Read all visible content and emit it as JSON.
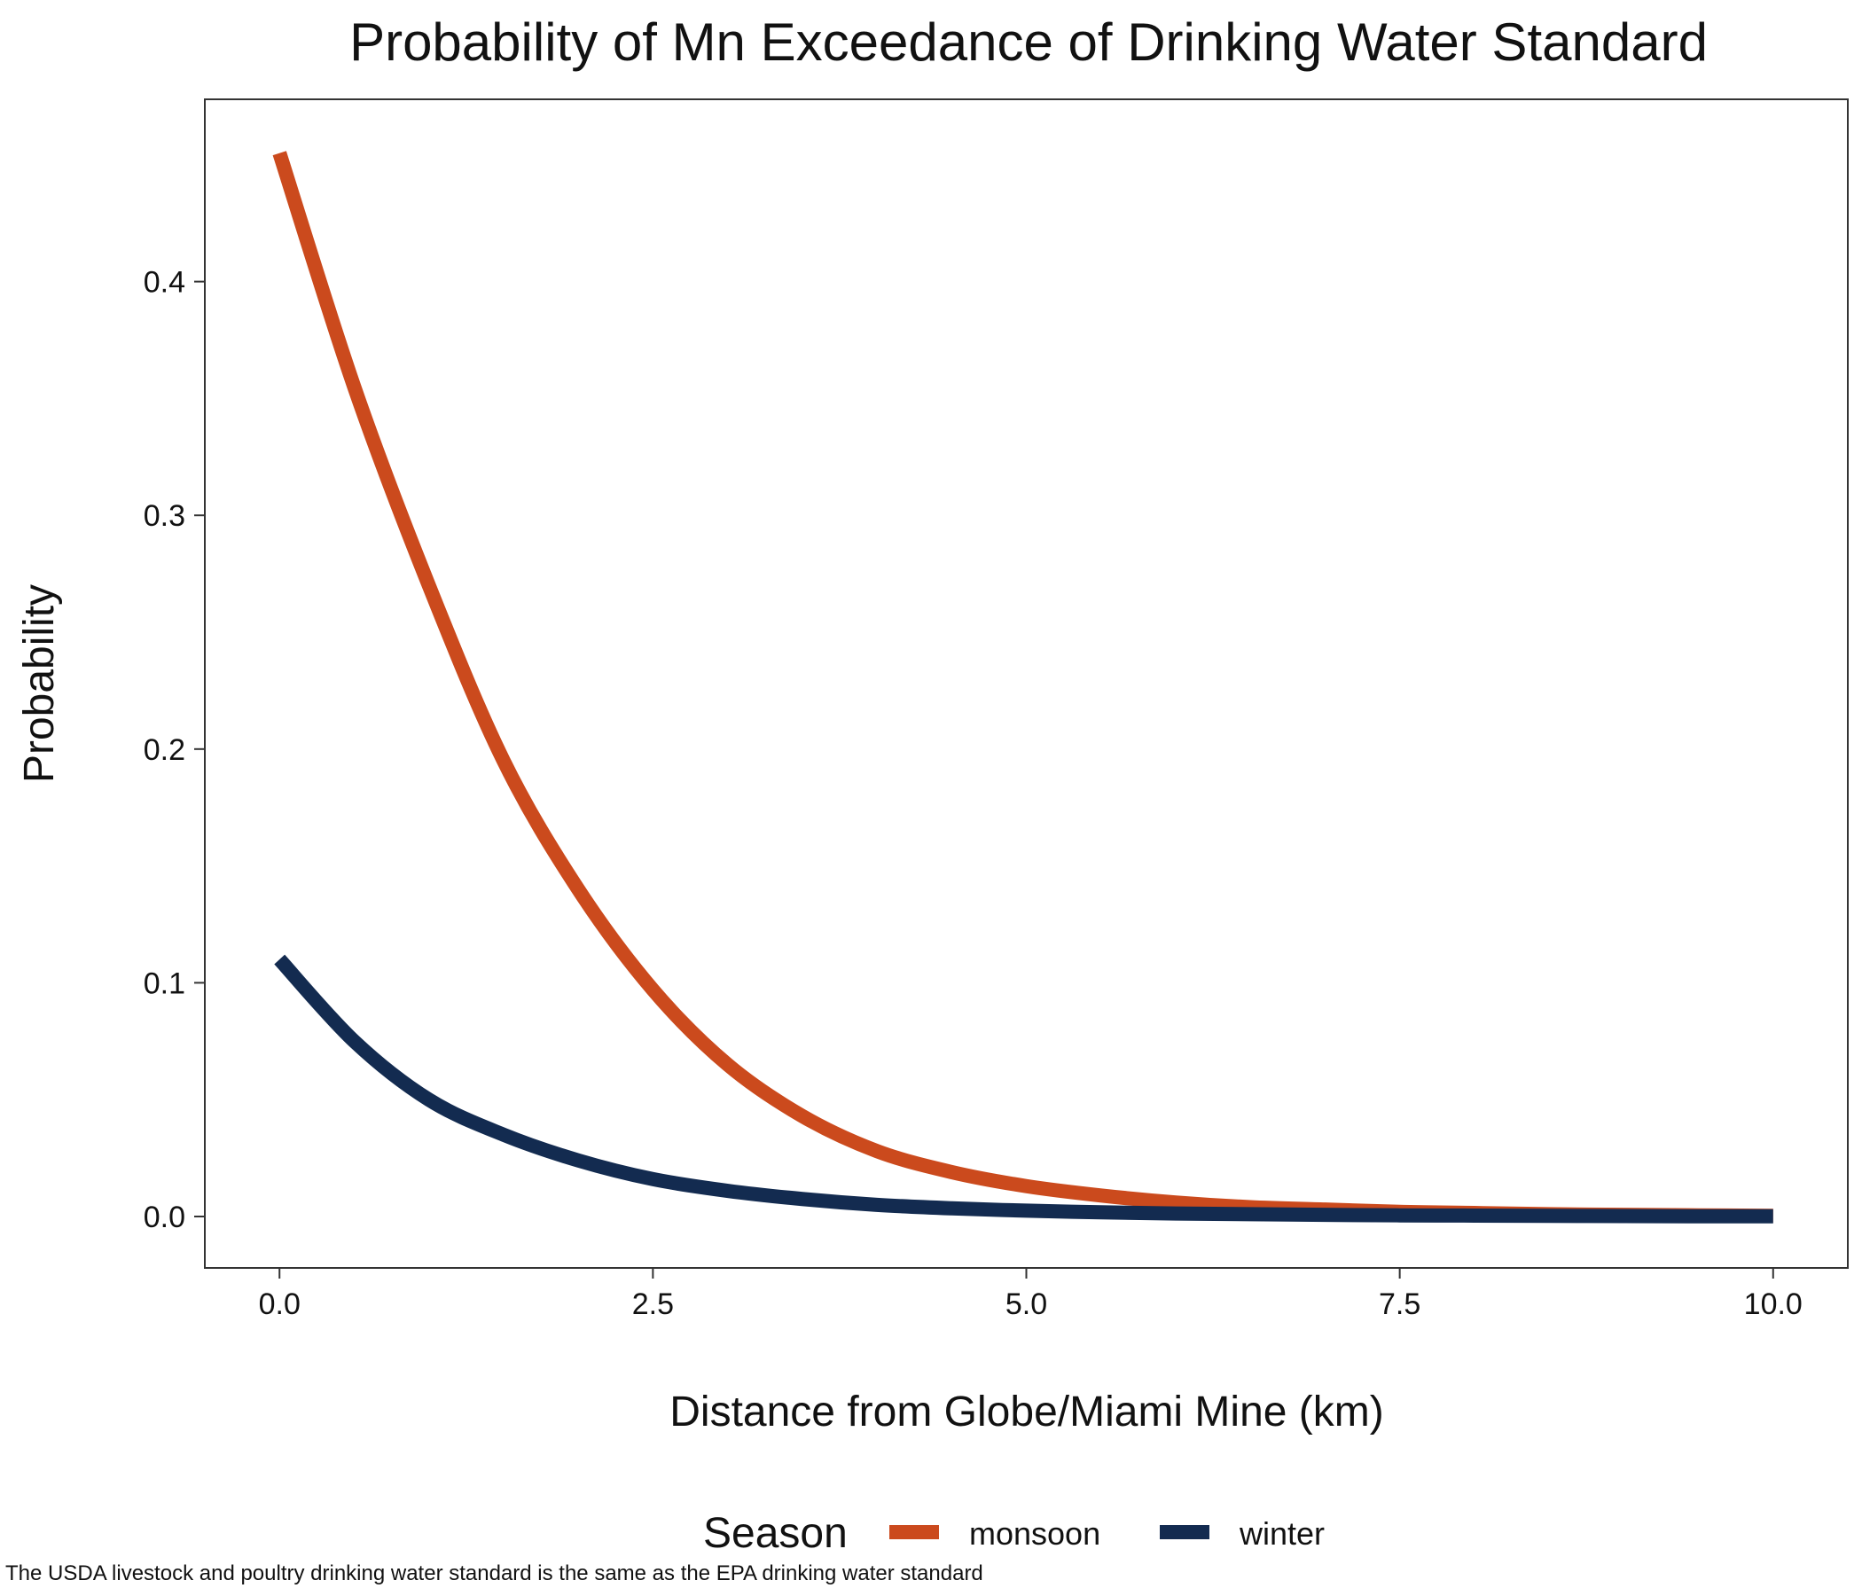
{
  "chart_data": {
    "type": "line",
    "title": "Probability of Mn Exceedance of Drinking Water Standard",
    "xlabel": "Distance from Globe/Miami Mine (km)",
    "ylabel": "Probability",
    "caption": "The USDA livestock and poultry drinking water standard is the same as the EPA drinking water standard",
    "xlim": [
      -0.5,
      10.5
    ],
    "ylim": [
      -0.022,
      0.478
    ],
    "x_ticks": [
      0.0,
      2.5,
      5.0,
      7.5,
      10.0
    ],
    "x_tick_labels": [
      "0.0",
      "2.5",
      "5.0",
      "7.5",
      "10.0"
    ],
    "y_ticks": [
      0.0,
      0.1,
      0.2,
      0.3,
      0.4
    ],
    "y_tick_labels": [
      "0.0",
      "0.1",
      "0.2",
      "0.3",
      "0.4"
    ],
    "grid": false,
    "legend": {
      "title": "Season",
      "position": "bottom"
    },
    "x": [
      0.0,
      0.5,
      1.0,
      1.5,
      2.0,
      2.5,
      3.0,
      3.5,
      4.0,
      4.5,
      5.0,
      5.5,
      6.0,
      6.5,
      7.0,
      7.5,
      8.0,
      8.5,
      9.0,
      9.5,
      10.0
    ],
    "series": [
      {
        "name": "monsoon",
        "color": "#CB4A1D",
        "values": [
          0.455,
          0.355,
          0.27,
          0.195,
          0.14,
          0.097,
          0.065,
          0.043,
          0.028,
          0.019,
          0.013,
          0.009,
          0.006,
          0.004,
          0.003,
          0.002,
          0.0015,
          0.001,
          0.0007,
          0.0005,
          0.0003
        ]
      },
      {
        "name": "winter",
        "color": "#132B50",
        "values": [
          0.11,
          0.075,
          0.05,
          0.035,
          0.024,
          0.016,
          0.011,
          0.0075,
          0.005,
          0.0035,
          0.0025,
          0.0018,
          0.0013,
          0.001,
          0.0007,
          0.0005,
          0.0004,
          0.0003,
          0.0002,
          0.0001,
          0.0001
        ]
      }
    ]
  }
}
